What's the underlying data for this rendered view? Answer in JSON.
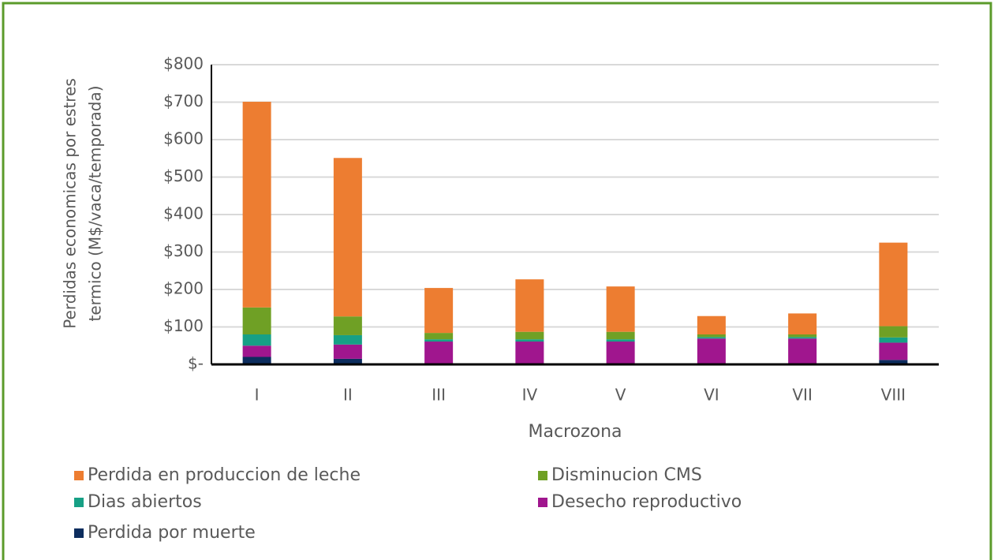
{
  "chart_data": {
    "type": "stacked_bar",
    "ylabel": [
      "Perdidas economicas por estres",
      "termico (M$/vaca/temporada)"
    ],
    "xlabel": "Macrozona",
    "categories": [
      "I",
      "II",
      "III",
      "IV",
      "V",
      "VI",
      "VII",
      "VIII"
    ],
    "series": [
      {
        "name": "Perdida por muerte",
        "color": "#0d2d5e",
        "values": [
          20,
          15,
          3,
          3,
          3,
          3,
          3,
          12
        ]
      },
      {
        "name": "Desecho reproductivo",
        "color": "#a0168e",
        "values": [
          30,
          38,
          58,
          58,
          58,
          66,
          66,
          46
        ]
      },
      {
        "name": "Dias abiertos",
        "color": "#17a085",
        "values": [
          30,
          25,
          6,
          6,
          6,
          4,
          4,
          14
        ]
      },
      {
        "name": "Disminucion CMS",
        "color": "#6fa025",
        "values": [
          72,
          50,
          17,
          20,
          20,
          7,
          7,
          30
        ]
      },
      {
        "name": "Perdida en produccion de leche",
        "color": "#ed7d31",
        "values": [
          549,
          423,
          120,
          140,
          121,
          49,
          56,
          223
        ]
      }
    ],
    "ylim": [
      0,
      800
    ],
    "yticks": [
      {
        "value": 0,
        "label": "$-"
      },
      {
        "value": 100,
        "label": "$100"
      },
      {
        "value": 200,
        "label": "$200"
      },
      {
        "value": 300,
        "label": "$300"
      },
      {
        "value": 400,
        "label": "$400"
      },
      {
        "value": 500,
        "label": "$500"
      },
      {
        "value": 600,
        "label": "$600"
      },
      {
        "value": 700,
        "label": "$700"
      },
      {
        "value": 800,
        "label": "$800"
      }
    ],
    "grid": true
  }
}
